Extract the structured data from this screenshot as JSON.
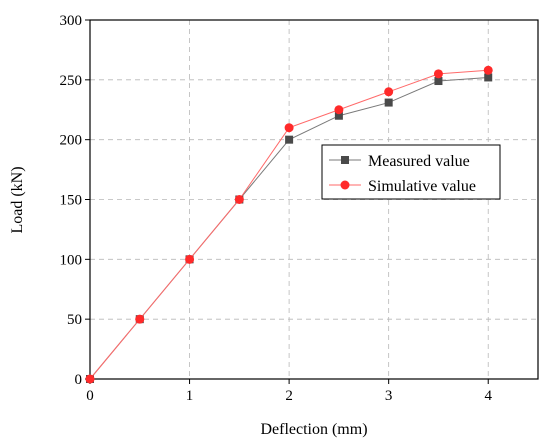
{
  "chart_data": {
    "type": "line",
    "xlabel": "Deflection (mm)",
    "ylabel": "Load (kN)",
    "xlim": [
      0,
      4.5
    ],
    "ylim": [
      0,
      300
    ],
    "x_ticks": [
      "0",
      "1",
      "2",
      "3",
      "4"
    ],
    "y_ticks": [
      "0",
      "50",
      "100",
      "150",
      "200",
      "250",
      "300"
    ],
    "grid": true,
    "legend_position": "center-right",
    "series": [
      {
        "name": "Measured value",
        "color": "#4a4a4a",
        "line_color": "#7a7a7a",
        "marker": "square",
        "x": [
          0,
          0.5,
          1,
          1.5,
          2,
          2.5,
          3,
          3.5,
          4
        ],
        "y": [
          0,
          50,
          100,
          150,
          200,
          220,
          231,
          249,
          252
        ]
      },
      {
        "name": "Simulative value",
        "color": "#ff2a2a",
        "line_color": "#ff6a6a",
        "marker": "circle",
        "x": [
          0,
          0.5,
          1,
          1.5,
          2,
          2.5,
          3,
          3.5,
          4
        ],
        "y": [
          0,
          50,
          100,
          150,
          210,
          225,
          240,
          255,
          258
        ]
      }
    ]
  }
}
